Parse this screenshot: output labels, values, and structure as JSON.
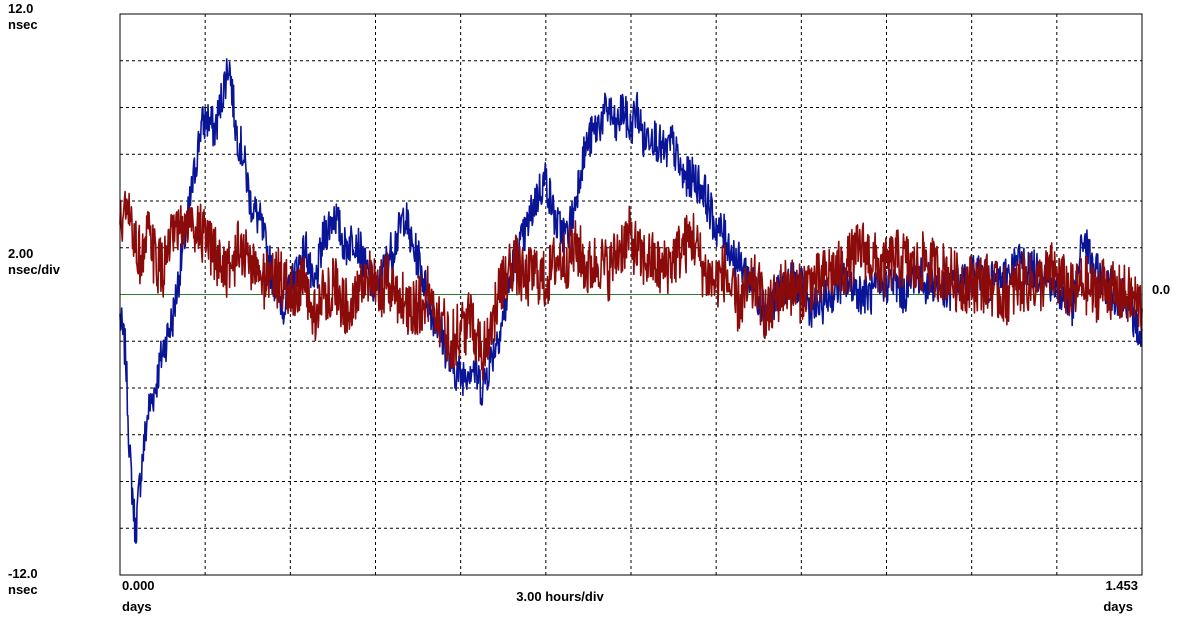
{
  "chart_data": {
    "type": "line",
    "title": "",
    "y_axis": {
      "top_label": "12.0",
      "top_unit": "nsec",
      "scale_label": "2.00",
      "scale_unit": "nsec/div",
      "bottom_label": "-12.0",
      "bottom_unit": "nsec",
      "ylim": [
        -12.0,
        12.0
      ],
      "right_reference_label": "0.0"
    },
    "x_axis": {
      "start_label": "0.000",
      "start_unit": "days",
      "scale_label": "3.00 hours/div",
      "end_label": "1.453",
      "end_unit": "days",
      "xlim": [
        0.0,
        1.453
      ]
    },
    "grid": true,
    "zero_line_color": "#2e7d32",
    "series": [
      {
        "color": "#0a1496",
        "x": [
          0.0,
          0.008,
          0.014,
          0.022,
          0.03,
          0.04,
          0.05,
          0.06,
          0.075,
          0.09,
          0.105,
          0.115,
          0.125,
          0.135,
          0.145,
          0.155,
          0.165,
          0.175,
          0.185,
          0.2,
          0.215,
          0.225,
          0.235,
          0.25,
          0.265,
          0.275,
          0.29,
          0.305,
          0.32,
          0.335,
          0.35,
          0.365,
          0.38,
          0.395,
          0.405,
          0.415,
          0.425,
          0.44,
          0.455,
          0.47,
          0.485,
          0.5,
          0.515,
          0.53,
          0.545,
          0.56,
          0.575,
          0.59,
          0.605,
          0.62,
          0.635,
          0.645,
          0.655,
          0.665,
          0.675,
          0.685,
          0.695,
          0.705,
          0.715,
          0.725,
          0.735,
          0.745,
          0.755,
          0.765,
          0.775,
          0.785,
          0.8,
          0.815,
          0.83,
          0.845,
          0.86,
          0.875,
          0.89,
          0.905,
          0.92,
          0.935,
          0.95,
          0.965,
          0.98,
          0.995,
          1.01,
          1.025,
          1.04,
          1.055,
          1.07,
          1.085,
          1.1,
          1.115,
          1.13,
          1.145,
          1.16,
          1.175,
          1.19,
          1.205,
          1.22,
          1.235,
          1.25,
          1.265,
          1.28,
          1.295,
          1.31,
          1.325,
          1.34,
          1.355,
          1.37,
          1.385,
          1.4,
          1.415,
          1.43,
          1.453
        ],
        "y": [
          -1.0,
          -2.5,
          -7.0,
          -10.2,
          -7.5,
          -5.0,
          -4.0,
          -2.5,
          -1.0,
          2.0,
          5.0,
          7.2,
          7.5,
          7.0,
          8.5,
          10.0,
          7.0,
          6.0,
          4.0,
          3.0,
          1.0,
          0.0,
          -0.5,
          1.0,
          2.0,
          0.0,
          2.5,
          3.5,
          2.0,
          2.5,
          1.0,
          0.0,
          1.5,
          2.5,
          3.5,
          2.0,
          1.5,
          -0.5,
          -1.5,
          -3.0,
          -3.5,
          -3.0,
          -4.0,
          -2.5,
          -1.0,
          1.5,
          2.5,
          4.0,
          5.0,
          3.0,
          2.5,
          3.5,
          5.5,
          6.5,
          7.0,
          7.5,
          8.0,
          7.0,
          8.0,
          7.0,
          8.0,
          6.5,
          7.0,
          6.5,
          6.0,
          6.5,
          5.0,
          5.0,
          4.5,
          3.0,
          2.5,
          1.5,
          1.0,
          0.0,
          -0.5,
          0.0,
          0.5,
          0.5,
          -0.5,
          -0.5,
          0.0,
          0.5,
          0.5,
          0.0,
          0.0,
          0.5,
          0.5,
          0.0,
          1.0,
          0.5,
          0.5,
          0.0,
          0.5,
          0.5,
          1.0,
          0.5,
          0.5,
          1.0,
          1.5,
          1.0,
          1.0,
          0.5,
          0.0,
          -0.5,
          2.5,
          1.0,
          0.5,
          0.0,
          0.0,
          -2.0
        ]
      },
      {
        "color": "#8b0a0a",
        "x": [
          0.0,
          0.01,
          0.02,
          0.03,
          0.04,
          0.05,
          0.06,
          0.07,
          0.08,
          0.095,
          0.11,
          0.125,
          0.14,
          0.155,
          0.17,
          0.185,
          0.2,
          0.215,
          0.23,
          0.245,
          0.26,
          0.275,
          0.29,
          0.305,
          0.32,
          0.335,
          0.35,
          0.365,
          0.38,
          0.395,
          0.41,
          0.425,
          0.44,
          0.455,
          0.47,
          0.485,
          0.5,
          0.515,
          0.53,
          0.545,
          0.56,
          0.575,
          0.59,
          0.605,
          0.62,
          0.635,
          0.65,
          0.665,
          0.68,
          0.695,
          0.71,
          0.725,
          0.74,
          0.755,
          0.77,
          0.785,
          0.8,
          0.815,
          0.83,
          0.845,
          0.86,
          0.875,
          0.89,
          0.905,
          0.92,
          0.935,
          0.95,
          0.965,
          0.98,
          0.995,
          1.01,
          1.025,
          1.04,
          1.055,
          1.07,
          1.085,
          1.1,
          1.115,
          1.13,
          1.145,
          1.16,
          1.175,
          1.19,
          1.205,
          1.22,
          1.235,
          1.25,
          1.265,
          1.28,
          1.295,
          1.31,
          1.325,
          1.34,
          1.355,
          1.37,
          1.385,
          1.4,
          1.415,
          1.43,
          1.453
        ],
        "y": [
          3.0,
          3.5,
          2.5,
          1.5,
          2.5,
          1.5,
          1.0,
          2.0,
          2.5,
          3.0,
          3.0,
          2.0,
          1.5,
          1.0,
          2.0,
          1.5,
          0.5,
          1.0,
          0.5,
          0.0,
          0.5,
          -1.0,
          0.0,
          0.5,
          -0.5,
          0.0,
          1.0,
          0.0,
          0.5,
          0.0,
          -0.5,
          -0.5,
          0.0,
          -1.0,
          -2.0,
          -1.5,
          -1.0,
          -2.5,
          -1.0,
          0.5,
          1.5,
          0.5,
          1.0,
          0.5,
          1.5,
          1.5,
          2.0,
          1.0,
          1.5,
          1.0,
          2.0,
          2.5,
          1.5,
          1.5,
          1.0,
          1.5,
          2.0,
          2.5,
          1.0,
          0.5,
          1.0,
          -0.5,
          0.0,
          0.5,
          -1.0,
          0.0,
          0.5,
          0.0,
          0.5,
          0.5,
          1.0,
          1.0,
          1.5,
          2.0,
          1.5,
          1.0,
          1.5,
          1.5,
          1.0,
          1.5,
          1.0,
          1.0,
          0.5,
          0.5,
          0.5,
          0.5,
          0.0,
          0.0,
          0.5,
          0.5,
          0.5,
          1.0,
          0.5,
          0.0,
          0.5,
          0.0,
          0.5,
          0.0,
          0.0,
          -0.5
        ]
      }
    ]
  }
}
